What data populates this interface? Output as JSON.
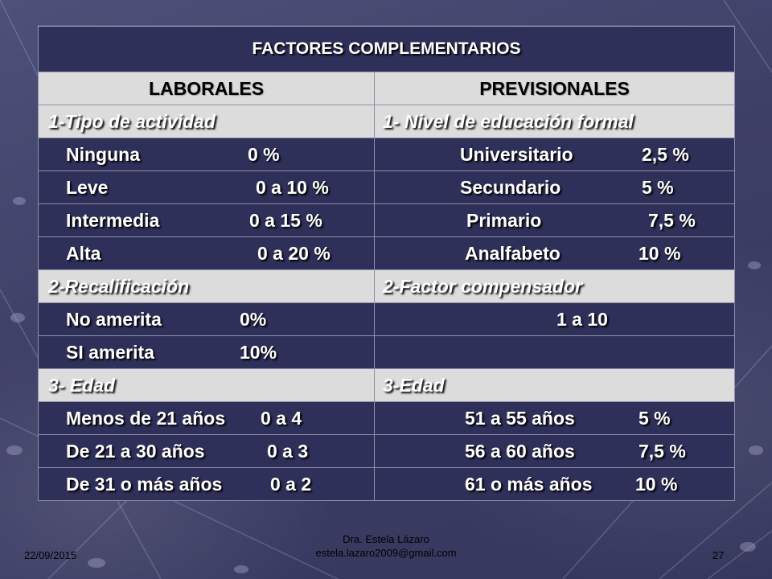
{
  "table": {
    "title": "FACTORES COMPLEMENTARIOS",
    "col_left": "LABORALES",
    "col_right": "PREVISIONALES",
    "sections": [
      {
        "left_header": "1-Tipo de actividad",
        "right_header": "1- Nivel de educación formal",
        "rows": [
          {
            "left_label": "Ninguna",
            "left_value": "0 %",
            "right_label": "Universitario",
            "right_value": "2,5 %"
          },
          {
            "left_label": "Leve",
            "left_value": "0 a 10 %",
            "right_label": "Secundario",
            "right_value": "5 %"
          },
          {
            "left_label": "Intermedia",
            "left_value": "0 a 15 %",
            "right_label": "Primario",
            "right_value": "7,5 %"
          },
          {
            "left_label": "Alta",
            "left_value": "0 a 20 %",
            "right_label": "Analfabeto",
            "right_value": "10 %"
          }
        ]
      },
      {
        "left_header": "2-Recalificación",
        "right_header": "2-Factor compensador",
        "rows": [
          {
            "left_label": "No amerita",
            "left_value": "0%",
            "right_label": "",
            "right_value": "1 a 10"
          },
          {
            "left_label": "SI amerita",
            "left_value": "10%",
            "right_label": "",
            "right_value": ""
          }
        ]
      },
      {
        "left_header": "3- Edad",
        "right_header": "3-Edad",
        "rows": [
          {
            "left_label": "Menos de 21 años",
            "left_value": "0 a 4",
            "right_label": "51 a 55 años",
            "right_value": "5 %"
          },
          {
            "left_label": "De 21 a 30 años",
            "left_value": "0 a 3",
            "right_label": "56 a 60 años",
            "right_value": "7,5 %"
          },
          {
            "left_label": "De 31 o más años",
            "left_value": "0 a 2",
            "right_label": "61 o más años",
            "right_value": "10 %"
          }
        ]
      }
    ]
  },
  "footer": {
    "date": "22/09/2015",
    "author": "Dra. Estela Lázaro",
    "email": "estela.lazaro2009@gmail.com",
    "page": "27"
  }
}
